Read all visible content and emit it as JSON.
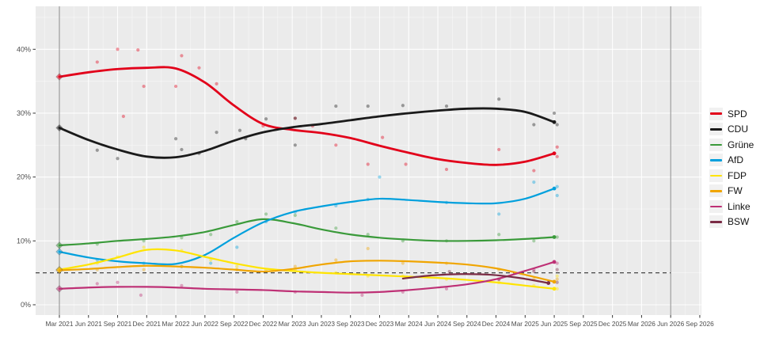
{
  "chart_data": {
    "type": "line",
    "title": "",
    "xlabel": "",
    "ylabel": "",
    "grid": "on",
    "legend_position": "right",
    "background_panel": "#ebebeb",
    "background_outer": "#ffffff",
    "y_tick_labels": [
      "0%",
      "10%",
      "20%",
      "30%",
      "40%"
    ],
    "y_tick_values": [
      0,
      10,
      20,
      30,
      40
    ],
    "ylim": [
      -1.6,
      46.8
    ],
    "x_tick_labels": [
      "Mar 2021",
      "Jun 2021",
      "Sep 2021",
      "Dec 2021",
      "Mar 2022",
      "Jun 2022",
      "Sep 2022",
      "Dec 2022",
      "Mar 2023",
      "Jun 2023",
      "Sep 2023",
      "Dec 2023",
      "Mar 2024",
      "Jun 2024",
      "Sep 2024",
      "Dec 2024",
      "Mar 2025",
      "Jun 2025",
      "Sep 2025",
      "Dec 2025",
      "Mar 2026",
      "Jun 2026",
      "Sep 2026"
    ],
    "threshold_line": {
      "value": 5,
      "style": "dashed",
      "color": "#333333",
      "x_start_tick": -0.82,
      "x_end_tick": 21
    },
    "event_lines": [
      {
        "x_tick": 0,
        "color": "#8a8a8a"
      },
      {
        "x_tick": 21,
        "color": "#8a8a8a"
      }
    ],
    "series": [
      {
        "name": "SPD",
        "color": "#e2001a",
        "line_width": 2.8,
        "election_result": 35.7,
        "trend_t_start": 0,
        "trend": [
          35.7,
          36.4,
          36.9,
          37.1,
          37.0,
          34.8,
          31.2,
          28.3,
          27.4,
          26.9,
          26.1,
          24.9,
          23.8,
          22.8,
          22.2,
          21.9,
          22.4,
          23.7
        ],
        "polls": [
          [
            1.3,
            38
          ],
          [
            2,
            40
          ],
          [
            2.2,
            29.5
          ],
          [
            2.7,
            39.9
          ],
          [
            2.9,
            34.2
          ],
          [
            4,
            34.2
          ],
          [
            4.2,
            39
          ],
          [
            4.8,
            37.1
          ],
          [
            5.4,
            34.6
          ],
          [
            7,
            28
          ],
          [
            8.1,
            29.2
          ],
          [
            8.7,
            28
          ],
          [
            9.5,
            25
          ],
          [
            10.6,
            22
          ],
          [
            11.1,
            26.2
          ],
          [
            11.9,
            22
          ],
          [
            13.3,
            21.2
          ],
          [
            15.1,
            24.3
          ],
          [
            16.3,
            21
          ],
          [
            17.1,
            24.7
          ],
          [
            17.1,
            23.2
          ]
        ]
      },
      {
        "name": "CDU",
        "color": "#1a1a1a",
        "line_width": 2.8,
        "election_result": 27.7,
        "trend_t_start": 0,
        "trend": [
          27.7,
          25.8,
          24.3,
          23.2,
          23.1,
          24.1,
          25.7,
          27.0,
          27.8,
          28.3,
          28.9,
          29.5,
          30.0,
          30.4,
          30.7,
          30.7,
          30.2,
          28.6
        ],
        "polls": [
          [
            1.3,
            24.2
          ],
          [
            2,
            22.9
          ],
          [
            4,
            26
          ],
          [
            4.2,
            24.3
          ],
          [
            4.8,
            23.7
          ],
          [
            5.4,
            27
          ],
          [
            6.2,
            27.3
          ],
          [
            6.4,
            26
          ],
          [
            7.1,
            29.1
          ],
          [
            8.1,
            29.2
          ],
          [
            8.1,
            25
          ],
          [
            9.5,
            31.1
          ],
          [
            10.6,
            31.1
          ],
          [
            11.8,
            31.2
          ],
          [
            13.3,
            31.1
          ],
          [
            15.1,
            32.2
          ],
          [
            16.3,
            28.2
          ],
          [
            17,
            30
          ],
          [
            17.1,
            28.2
          ]
        ]
      },
      {
        "name": "Grüne",
        "color": "#3a9a3a",
        "line_width": 2.2,
        "election_result": 9.3,
        "trend_t_start": 0,
        "trend": [
          9.3,
          9.6,
          10.0,
          10.3,
          10.7,
          11.4,
          12.5,
          13.4,
          12.8,
          11.8,
          11.0,
          10.5,
          10.2,
          10.0,
          10.0,
          10.1,
          10.3,
          10.6
        ],
        "polls": [
          [
            1.3,
            9.5
          ],
          [
            2.9,
            10
          ],
          [
            4.2,
            10.5
          ],
          [
            5.2,
            11
          ],
          [
            6.1,
            13
          ],
          [
            7.1,
            14.2
          ],
          [
            8.1,
            14
          ],
          [
            9.5,
            12
          ],
          [
            10.6,
            11
          ],
          [
            11.8,
            10
          ],
          [
            13.3,
            10
          ],
          [
            15.1,
            11
          ],
          [
            16.3,
            10
          ],
          [
            17.1,
            10.6
          ]
        ]
      },
      {
        "name": "AfD",
        "color": "#00a0dd",
        "line_width": 2.2,
        "election_result": 8.3,
        "trend_t_start": 0,
        "trend": [
          8.3,
          7.4,
          6.8,
          6.5,
          6.4,
          7.8,
          10.5,
          12.9,
          14.5,
          15.4,
          16.1,
          16.6,
          16.4,
          16.1,
          15.9,
          15.9,
          16.6,
          18.2
        ],
        "polls": [
          [
            1.3,
            7
          ],
          [
            2.9,
            6.5
          ],
          [
            4.2,
            6
          ],
          [
            5.2,
            6.5
          ],
          [
            6.1,
            9
          ],
          [
            7.1,
            13
          ],
          [
            8.1,
            14.5
          ],
          [
            9.5,
            15.5
          ],
          [
            10.6,
            16.5
          ],
          [
            11,
            20
          ],
          [
            13.3,
            16
          ],
          [
            15.1,
            14.2
          ],
          [
            16.3,
            19.2
          ],
          [
            17.1,
            17.1
          ],
          [
            17.1,
            18.5
          ]
        ]
      },
      {
        "name": "FDP",
        "color": "#ffe400",
        "line_width": 2.2,
        "election_result": 5.5,
        "trend_t_start": 0,
        "trend": [
          5.5,
          6.3,
          7.4,
          8.6,
          8.5,
          7.5,
          6.5,
          5.7,
          5.3,
          5.0,
          4.8,
          4.6,
          4.4,
          4.2,
          3.9,
          3.5,
          3.0,
          2.5
        ],
        "polls": [
          [
            1.3,
            6.5
          ],
          [
            2,
            7.5
          ],
          [
            2.9,
            9
          ],
          [
            4.2,
            8.5
          ],
          [
            5.2,
            7
          ],
          [
            6.1,
            6
          ],
          [
            7.1,
            5.5
          ],
          [
            8.1,
            5.5
          ],
          [
            9.5,
            5
          ],
          [
            10.6,
            4.5
          ],
          [
            11.8,
            4.5
          ],
          [
            13.3,
            4
          ],
          [
            15.1,
            3.5
          ],
          [
            16.3,
            3
          ],
          [
            17.1,
            4.5
          ],
          [
            17.1,
            2.5
          ]
        ]
      },
      {
        "name": "FW",
        "color": "#f0a500",
        "line_width": 2.2,
        "election_result": 5.4,
        "trend_t_start": 0,
        "trend": [
          5.4,
          5.6,
          5.9,
          6.1,
          6.0,
          5.8,
          5.5,
          5.2,
          5.6,
          6.3,
          6.8,
          6.9,
          6.8,
          6.6,
          6.3,
          5.7,
          4.7,
          3.6
        ],
        "polls": [
          [
            1.3,
            5.5
          ],
          [
            2.9,
            5.5
          ],
          [
            4.2,
            6
          ],
          [
            6.1,
            5.5
          ],
          [
            8.1,
            6
          ],
          [
            9.5,
            7
          ],
          [
            10.6,
            8.8
          ],
          [
            11.8,
            6.5
          ],
          [
            13.3,
            6.5
          ],
          [
            15.1,
            5.5
          ],
          [
            16.3,
            4
          ],
          [
            17.1,
            4
          ]
        ]
      },
      {
        "name": "Linke",
        "color": "#be3075",
        "line_width": 2.2,
        "election_result": 2.5,
        "trend_t_start": 0,
        "trend": [
          2.5,
          2.7,
          2.8,
          2.8,
          2.7,
          2.5,
          2.4,
          2.3,
          2.1,
          2.0,
          1.9,
          2.0,
          2.3,
          2.7,
          3.2,
          4.0,
          5.3,
          6.7
        ],
        "polls": [
          [
            1.3,
            3.3
          ],
          [
            2,
            3.5
          ],
          [
            2.8,
            1.5
          ],
          [
            4.2,
            3
          ],
          [
            6.1,
            2
          ],
          [
            8.1,
            2
          ],
          [
            10.4,
            1.5
          ],
          [
            11.8,
            2
          ],
          [
            13.3,
            2.5
          ],
          [
            15.1,
            4
          ],
          [
            16.3,
            5.5
          ],
          [
            17.1,
            6.5
          ]
        ]
      },
      {
        "name": "BSW",
        "color": "#7a2b45",
        "line_width": 2.2,
        "election_result": null,
        "trend_t_start": 11.8,
        "trend": [
          4.1,
          4.6,
          4.8,
          4.7,
          4.2,
          3.4
        ],
        "polls": [
          [
            13.4,
            5.2
          ],
          [
            15.1,
            4
          ],
          [
            16.3,
            5.2
          ],
          [
            17.1,
            5.5
          ],
          [
            17.1,
            3.5
          ]
        ]
      }
    ]
  }
}
